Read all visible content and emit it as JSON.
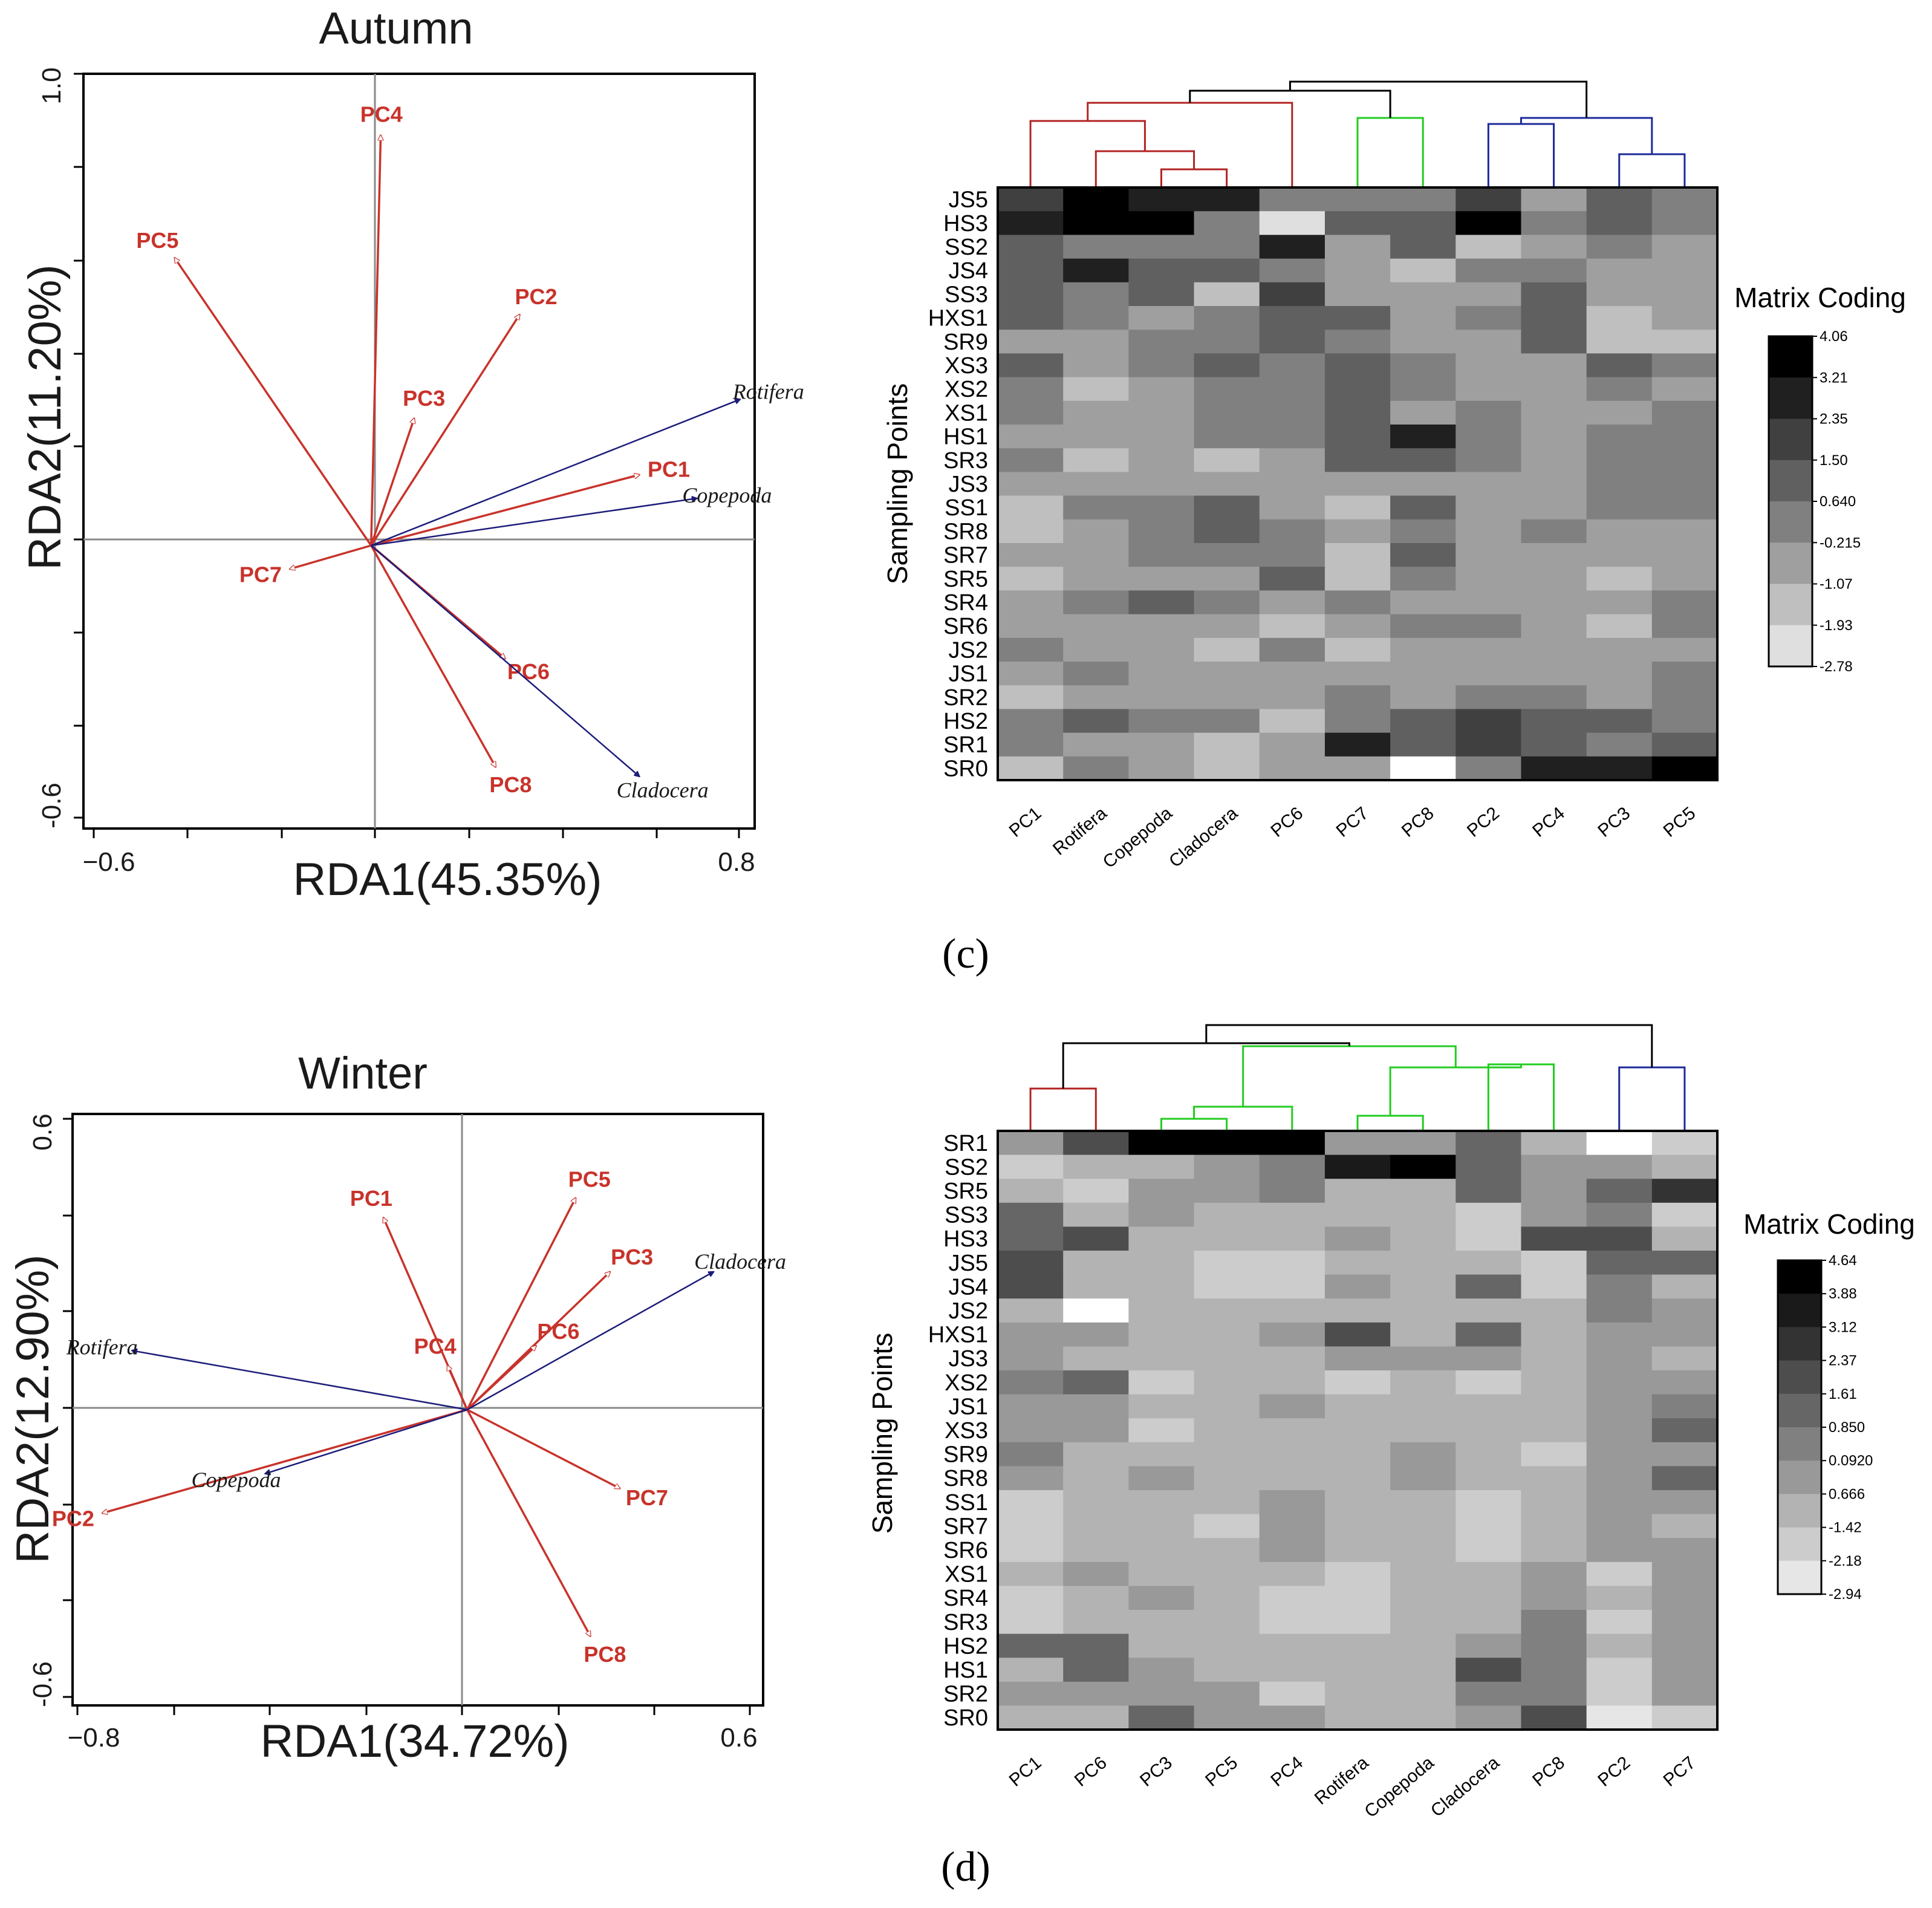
{
  "chart_data": [
    {
      "type": "scatter",
      "subtype": "rda_biplot",
      "title": "Autumn",
      "xlabel": "RDA1(45.35%)",
      "ylabel": "RDA2(11.20%)",
      "xlim": [
        -0.6,
        0.8
      ],
      "ylim": [
        -0.6,
        1.0
      ],
      "x_tick_labels": [
        "−0.6",
        "0.8"
      ],
      "y_tick_labels": [
        "1.0",
        "-0.6"
      ],
      "env_vectors": [
        {
          "name": "PC1",
          "x": 0.56,
          "y": 0.15
        },
        {
          "name": "PC2",
          "x": 0.31,
          "y": 0.49
        },
        {
          "name": "PC3",
          "x": 0.09,
          "y": 0.27
        },
        {
          "name": "PC4",
          "x": 0.02,
          "y": 0.87
        },
        {
          "name": "PC5",
          "x": -0.41,
          "y": 0.61
        },
        {
          "name": "PC6",
          "x": 0.28,
          "y": -0.24
        },
        {
          "name": "PC7",
          "x": -0.17,
          "y": -0.05
        },
        {
          "name": "PC8",
          "x": 0.26,
          "y": -0.47
        }
      ],
      "species_vectors": [
        {
          "name": "Rotifera",
          "x": 0.77,
          "y": 0.31
        },
        {
          "name": "Copepoda",
          "x": 0.68,
          "y": 0.1
        },
        {
          "name": "Cladocera",
          "x": 0.56,
          "y": -0.49
        }
      ]
    },
    {
      "type": "heatmap",
      "panel": "(c)",
      "ylabel": "Sampling Points",
      "legend_title": "Matrix Coding",
      "legend_ticks": [
        "4.06",
        "3.21",
        "2.35",
        "1.50",
        "0.640",
        "-0.215",
        "-1.07",
        "-1.93",
        "-2.78"
      ],
      "columns": [
        "PC1",
        "Rotifera",
        "Copepoda",
        "Cladocera",
        "PC6",
        "PC7",
        "PC8",
        "PC2",
        "PC4",
        "PC3",
        "PC5"
      ],
      "rows": [
        "JS5",
        "HS3",
        "SS2",
        "JS4",
        "SS3",
        "HXS1",
        "SR9",
        "XS3",
        "XS2",
        "XS1",
        "HS1",
        "SR3",
        "JS3",
        "SS1",
        "SR8",
        "SR7",
        "SR5",
        "SR4",
        "SR6",
        "JS2",
        "JS1",
        "SR2",
        "HS2",
        "SR1",
        "SR0"
      ],
      "values_level": [
        [
          6,
          8,
          7,
          7,
          4,
          4,
          4,
          6,
          3,
          5,
          4
        ],
        [
          7,
          8,
          8,
          4,
          1,
          5,
          5,
          8,
          4,
          5,
          4
        ],
        [
          5,
          4,
          4,
          4,
          7,
          3,
          5,
          2,
          3,
          4,
          3
        ],
        [
          5,
          7,
          5,
          5,
          4,
          3,
          2,
          4,
          4,
          3,
          3
        ],
        [
          5,
          4,
          5,
          2,
          6,
          3,
          3,
          3,
          5,
          3,
          3
        ],
        [
          5,
          4,
          3,
          4,
          5,
          5,
          3,
          4,
          5,
          2,
          3
        ],
        [
          3,
          3,
          4,
          4,
          5,
          4,
          3,
          3,
          5,
          2,
          2
        ],
        [
          5,
          3,
          4,
          5,
          4,
          5,
          4,
          3,
          3,
          5,
          4
        ],
        [
          4,
          2,
          3,
          4,
          4,
          5,
          4,
          3,
          3,
          4,
          3
        ],
        [
          4,
          3,
          3,
          4,
          4,
          5,
          3,
          4,
          3,
          3,
          4
        ],
        [
          3,
          3,
          3,
          4,
          4,
          5,
          7,
          4,
          3,
          4,
          4
        ],
        [
          4,
          2,
          3,
          2,
          3,
          5,
          5,
          4,
          3,
          4,
          4
        ],
        [
          3,
          3,
          3,
          3,
          3,
          3,
          3,
          3,
          3,
          4,
          4
        ],
        [
          2,
          4,
          4,
          5,
          3,
          2,
          5,
          3,
          3,
          4,
          4
        ],
        [
          2,
          3,
          4,
          5,
          4,
          3,
          4,
          3,
          4,
          3,
          3
        ],
        [
          3,
          3,
          4,
          4,
          4,
          2,
          5,
          3,
          3,
          3,
          3
        ],
        [
          2,
          3,
          3,
          3,
          5,
          2,
          4,
          3,
          3,
          2,
          3
        ],
        [
          3,
          4,
          5,
          4,
          3,
          4,
          3,
          3,
          3,
          3,
          4
        ],
        [
          3,
          3,
          3,
          3,
          2,
          3,
          4,
          4,
          3,
          2,
          4
        ],
        [
          4,
          3,
          3,
          2,
          4,
          2,
          3,
          3,
          3,
          3,
          3
        ],
        [
          3,
          4,
          3,
          3,
          3,
          3,
          3,
          3,
          3,
          3,
          4
        ],
        [
          2,
          3,
          3,
          3,
          3,
          4,
          3,
          4,
          4,
          3,
          4
        ],
        [
          4,
          5,
          4,
          4,
          2,
          4,
          5,
          6,
          5,
          5,
          4
        ],
        [
          4,
          3,
          3,
          2,
          3,
          7,
          5,
          6,
          5,
          4,
          5
        ],
        [
          2,
          4,
          3,
          2,
          3,
          3,
          0,
          4,
          7,
          7,
          8
        ]
      ],
      "dendrogram": "hierarchical clustering of columns (red, green, blue clusters)"
    },
    {
      "type": "scatter",
      "subtype": "rda_biplot",
      "title": "Winter",
      "xlabel": "RDA1(34.72%)",
      "ylabel": "RDA2(12.90%)",
      "xlim": [
        -0.8,
        0.6
      ],
      "ylim": [
        -0.6,
        0.6
      ],
      "x_tick_labels": [
        "−0.8",
        "0.6"
      ],
      "y_tick_labels": [
        "0.6",
        "-0.6"
      ],
      "env_vectors": [
        {
          "name": "PC1",
          "x": -0.17,
          "y": 0.39
        },
        {
          "name": "PC2",
          "x": -0.74,
          "y": -0.21
        },
        {
          "name": "PC3",
          "x": 0.29,
          "y": 0.28
        },
        {
          "name": "PC4",
          "x": -0.04,
          "y": 0.09
        },
        {
          "name": "PC5",
          "x": 0.22,
          "y": 0.43
        },
        {
          "name": "PC6",
          "x": 0.14,
          "y": 0.13
        },
        {
          "name": "PC7",
          "x": 0.31,
          "y": -0.16
        },
        {
          "name": "PC8",
          "x": 0.25,
          "y": -0.46
        }
      ],
      "species_vectors": [
        {
          "name": "Rotifera",
          "x": -0.68,
          "y": 0.12
        },
        {
          "name": "Copepoda",
          "x": -0.41,
          "y": -0.13
        },
        {
          "name": "Cladocera",
          "x": 0.5,
          "y": 0.28
        }
      ]
    },
    {
      "type": "heatmap",
      "panel": "(d)",
      "ylabel": "Sampling Points",
      "legend_title": "Matrix Coding",
      "legend_ticks": [
        "4.64",
        "3.88",
        "3.12",
        "2.37",
        "1.61",
        "0.850",
        "0.0920",
        "0.666",
        "-1.42",
        "-2.18",
        "-2.94"
      ],
      "columns": [
        "PC1",
        "PC6",
        "PC3",
        "PC5",
        "PC4",
        "Rotifera",
        "Copepoda",
        "Cladocera",
        "PC8",
        "PC2",
        "PC7"
      ],
      "rows": [
        "SR1",
        "SS2",
        "SR5",
        "SS3",
        "HS3",
        "JS5",
        "JS4",
        "JS2",
        "HXS1",
        "JS3",
        "XS2",
        "JS1",
        "XS3",
        "SR9",
        "SR8",
        "SS1",
        "SR7",
        "SR6",
        "XS1",
        "SR4",
        "SR3",
        "HS2",
        "HS1",
        "SR2",
        "SR0"
      ],
      "values_level": [
        [
          4,
          7,
          10,
          10,
          10,
          4,
          4,
          6,
          3,
          0,
          2
        ],
        [
          2,
          3,
          3,
          4,
          5,
          9,
          10,
          6,
          4,
          4,
          3
        ],
        [
          3,
          2,
          4,
          4,
          5,
          3,
          3,
          6,
          4,
          6,
          8
        ],
        [
          6,
          3,
          4,
          3,
          3,
          3,
          3,
          2,
          4,
          5,
          2
        ],
        [
          6,
          7,
          3,
          3,
          3,
          4,
          3,
          2,
          7,
          7,
          3
        ],
        [
          7,
          3,
          3,
          2,
          2,
          3,
          3,
          3,
          2,
          6,
          6
        ],
        [
          7,
          3,
          3,
          2,
          2,
          4,
          3,
          6,
          2,
          5,
          3
        ],
        [
          3,
          0,
          3,
          3,
          3,
          3,
          3,
          3,
          3,
          5,
          4
        ],
        [
          4,
          4,
          3,
          3,
          4,
          7,
          3,
          6,
          3,
          4,
          4
        ],
        [
          4,
          3,
          3,
          3,
          3,
          4,
          4,
          4,
          3,
          4,
          3
        ],
        [
          5,
          6,
          2,
          3,
          3,
          2,
          3,
          2,
          3,
          4,
          4
        ],
        [
          4,
          4,
          3,
          3,
          4,
          3,
          3,
          3,
          3,
          4,
          5
        ],
        [
          4,
          4,
          2,
          3,
          3,
          3,
          3,
          3,
          3,
          4,
          6
        ],
        [
          5,
          3,
          3,
          3,
          3,
          3,
          4,
          3,
          2,
          4,
          4
        ],
        [
          4,
          3,
          4,
          3,
          3,
          3,
          4,
          3,
          3,
          4,
          6
        ],
        [
          2,
          3,
          3,
          3,
          4,
          3,
          3,
          2,
          3,
          4,
          4
        ],
        [
          2,
          3,
          3,
          2,
          4,
          3,
          3,
          2,
          3,
          4,
          3
        ],
        [
          2,
          3,
          3,
          3,
          4,
          3,
          3,
          2,
          3,
          4,
          4
        ],
        [
          3,
          4,
          3,
          3,
          3,
          2,
          3,
          3,
          4,
          2,
          4
        ],
        [
          2,
          3,
          4,
          3,
          2,
          2,
          3,
          3,
          4,
          3,
          4
        ],
        [
          2,
          3,
          3,
          3,
          2,
          2,
          3,
          3,
          5,
          2,
          4
        ],
        [
          6,
          6,
          3,
          3,
          3,
          3,
          3,
          4,
          5,
          3,
          4
        ],
        [
          3,
          6,
          4,
          3,
          3,
          3,
          3,
          7,
          5,
          2,
          4
        ],
        [
          4,
          4,
          4,
          4,
          2,
          3,
          3,
          5,
          5,
          2,
          4
        ],
        [
          3,
          3,
          6,
          4,
          4,
          3,
          3,
          4,
          7,
          1,
          2
        ]
      ],
      "dendrogram": "hierarchical clustering of columns (red, green, blue clusters)"
    }
  ],
  "panel_letters": {
    "c": "(c)",
    "d": "(d)"
  },
  "colors": {
    "env_vector": "#c8332b",
    "species_vector": "#1c1c7a",
    "dendro_red": "#b22222",
    "dendro_green": "#22cc22",
    "dendro_blue": "#1c2a9a"
  }
}
